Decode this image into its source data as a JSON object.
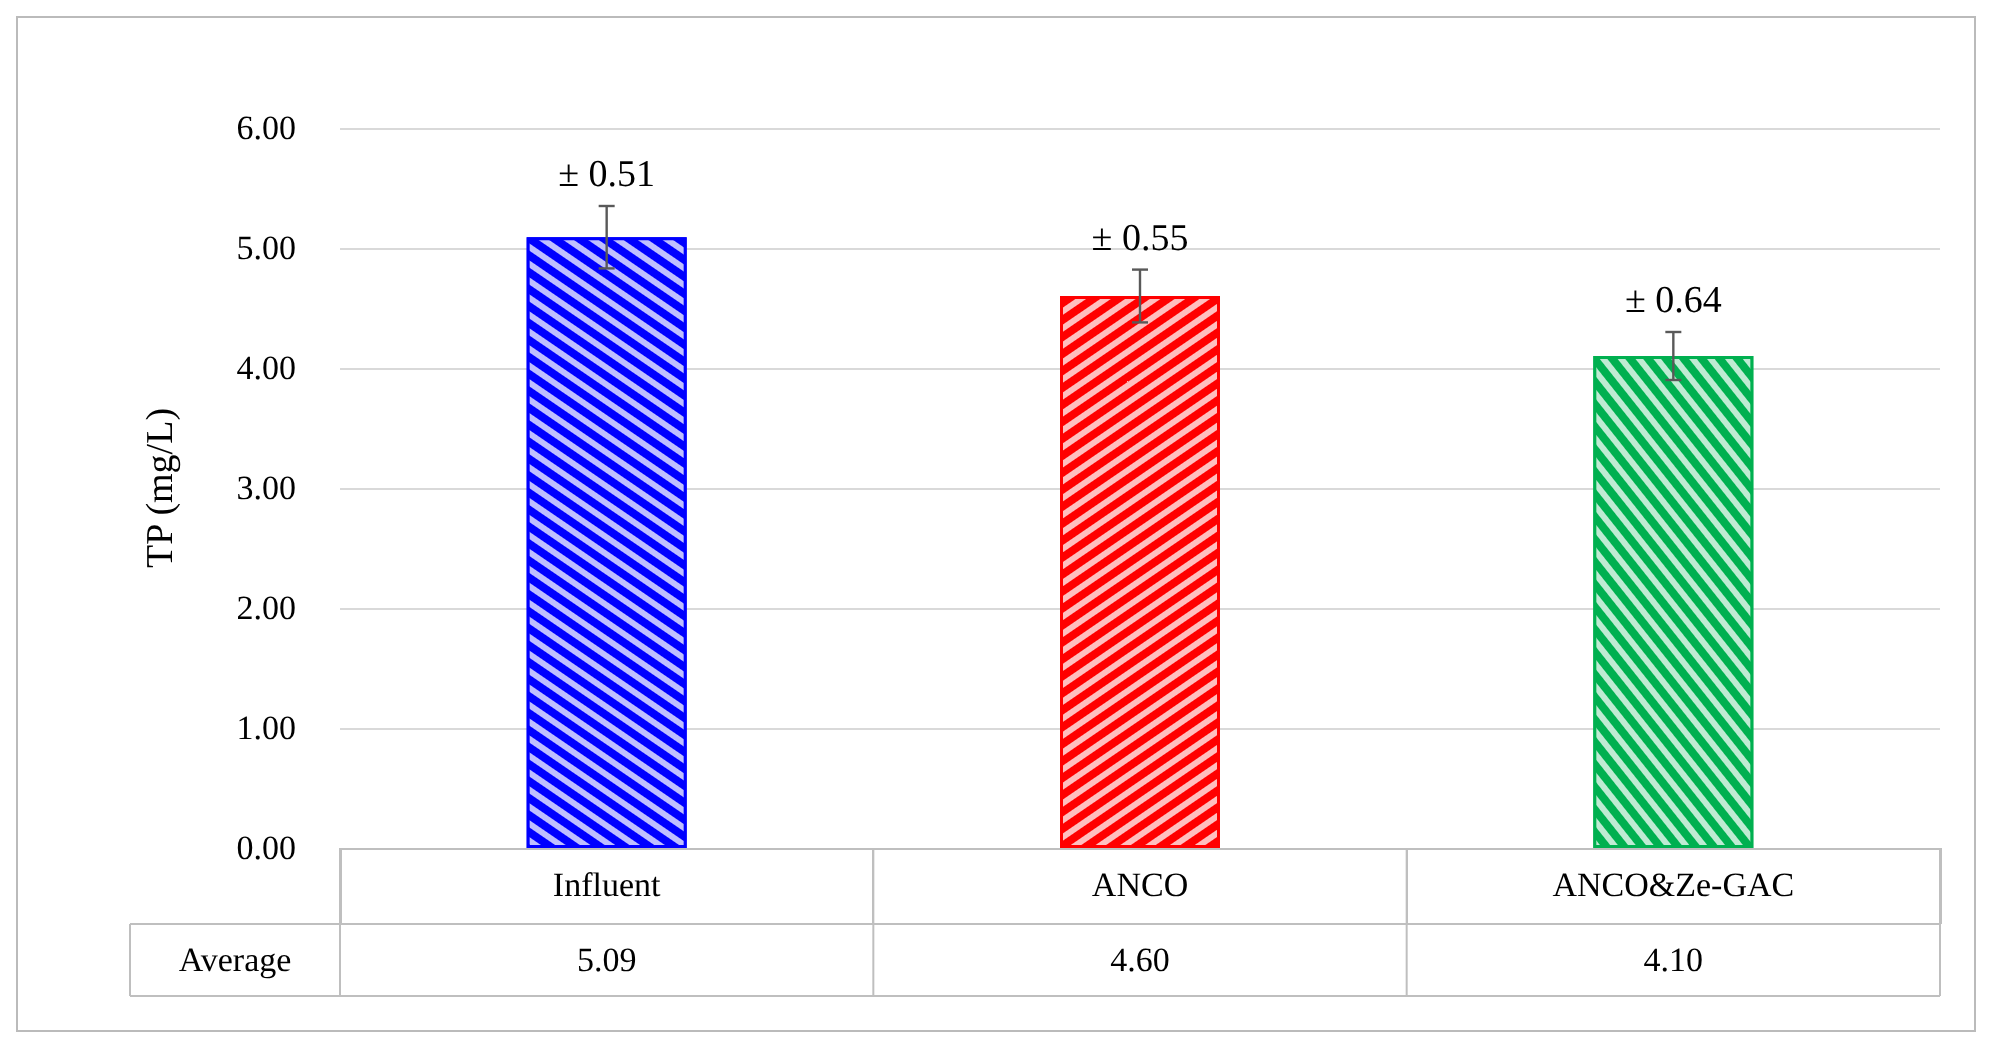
{
  "chart_data": {
    "type": "bar",
    "ylabel": "TP (mg/L)",
    "categories": [
      "Influent",
      "ANCO",
      "ANCO&Ze-GAC"
    ],
    "values": [
      5.09,
      4.6,
      4.1
    ],
    "colors": [
      "#0000ff",
      "#ff0000",
      "#00b050"
    ],
    "errors": [
      0.26,
      0.22,
      0.2
    ],
    "ylim": [
      0,
      6
    ],
    "yticks": [
      {
        "value": 0,
        "label": "0.00"
      },
      {
        "value": 1,
        "label": "1.00"
      },
      {
        "value": 2,
        "label": "2.00"
      },
      {
        "value": 3,
        "label": "3.00"
      },
      {
        "value": 4,
        "label": "4.00"
      },
      {
        "value": 5,
        "label": "5.00"
      },
      {
        "value": 6,
        "label": "6.00"
      }
    ],
    "grid": "y",
    "value_labels": [
      "5.09",
      "4.60",
      "4.10"
    ],
    "annotations": [
      {
        "text": "± 0.51",
        "x": "Influent",
        "y": 5.35
      },
      {
        "text": "± 0.55",
        "x": "ANCO",
        "y": 4.82
      },
      {
        "text": "± 0.64",
        "x": "ANCO&Ze-GAC",
        "y": 4.3
      },
      "Average"
    ]
  }
}
